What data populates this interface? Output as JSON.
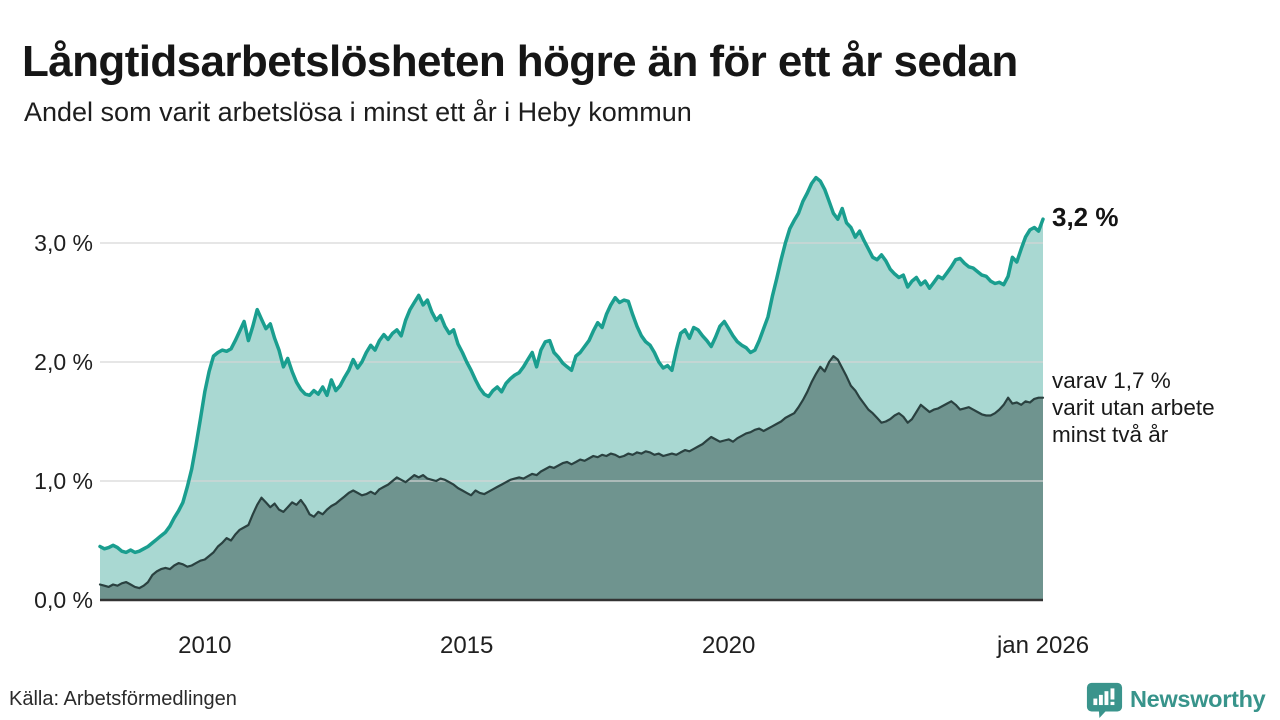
{
  "header": {
    "title": "Långtidsarbetslösheten högre än för ett år sedan",
    "subtitle": "Andel som varit arbetslösa i minst ett år i Heby kommun"
  },
  "chart_data": {
    "type": "area",
    "unit": "%",
    "frequency": "monthly",
    "x_range": [
      "2008",
      "jan 2026"
    ],
    "ylim": [
      0,
      3.7
    ],
    "grid": true,
    "yticks": [
      {
        "value": 0,
        "label": "0,0 %"
      },
      {
        "value": 1,
        "label": "1,0 %"
      },
      {
        "value": 2,
        "label": "2,0 %"
      },
      {
        "value": 3,
        "label": "3,0 %"
      }
    ],
    "xticks": [
      {
        "index": 24,
        "label": "2010"
      },
      {
        "index": 84,
        "label": "2015"
      },
      {
        "index": 144,
        "label": "2020"
      },
      {
        "index": 216,
        "label": "jan 2026"
      }
    ],
    "series": [
      {
        "name": "Andel som varit arbetslösa minst ett år",
        "line_color": "#1a9e8f",
        "fill_color": "#a9d8d2",
        "line_width": 3.5,
        "values": [
          0.45,
          0.43,
          0.44,
          0.46,
          0.44,
          0.41,
          0.4,
          0.42,
          0.4,
          0.41,
          0.43,
          0.45,
          0.48,
          0.51,
          0.54,
          0.57,
          0.62,
          0.69,
          0.75,
          0.82,
          0.95,
          1.1,
          1.3,
          1.52,
          1.75,
          1.92,
          2.05,
          2.08,
          2.1,
          2.09,
          2.11,
          2.18,
          2.26,
          2.34,
          2.18,
          2.3,
          2.44,
          2.36,
          2.28,
          2.32,
          2.2,
          2.1,
          1.96,
          2.03,
          1.92,
          1.83,
          1.77,
          1.73,
          1.72,
          1.76,
          1.73,
          1.79,
          1.72,
          1.85,
          1.76,
          1.8,
          1.87,
          1.93,
          2.02,
          1.95,
          2.0,
          2.08,
          2.14,
          2.1,
          2.18,
          2.23,
          2.19,
          2.24,
          2.27,
          2.22,
          2.35,
          2.44,
          2.5,
          2.56,
          2.48,
          2.52,
          2.42,
          2.35,
          2.39,
          2.3,
          2.24,
          2.27,
          2.15,
          2.08,
          2.0,
          1.93,
          1.85,
          1.78,
          1.73,
          1.71,
          1.76,
          1.79,
          1.75,
          1.82,
          1.86,
          1.89,
          1.91,
          1.96,
          2.02,
          2.08,
          1.96,
          2.1,
          2.17,
          2.18,
          2.08,
          2.04,
          1.99,
          1.96,
          1.93,
          2.05,
          2.08,
          2.13,
          2.18,
          2.26,
          2.33,
          2.29,
          2.4,
          2.48,
          2.54,
          2.5,
          2.52,
          2.51,
          2.4,
          2.3,
          2.22,
          2.17,
          2.14,
          2.08,
          2.0,
          1.95,
          1.97,
          1.93,
          2.1,
          2.24,
          2.27,
          2.2,
          2.29,
          2.27,
          2.22,
          2.18,
          2.13,
          2.21,
          2.3,
          2.34,
          2.28,
          2.22,
          2.17,
          2.14,
          2.12,
          2.08,
          2.1,
          2.18,
          2.28,
          2.38,
          2.55,
          2.7,
          2.86,
          3.0,
          3.12,
          3.19,
          3.25,
          3.35,
          3.42,
          3.5,
          3.55,
          3.52,
          3.45,
          3.35,
          3.25,
          3.2,
          3.29,
          3.17,
          3.13,
          3.05,
          3.1,
          3.02,
          2.95,
          2.88,
          2.86,
          2.9,
          2.85,
          2.78,
          2.74,
          2.71,
          2.73,
          2.63,
          2.68,
          2.71,
          2.65,
          2.68,
          2.62,
          2.67,
          2.72,
          2.7,
          2.75,
          2.8,
          2.86,
          2.87,
          2.83,
          2.8,
          2.79,
          2.76,
          2.73,
          2.72,
          2.68,
          2.66,
          2.67,
          2.65,
          2.72,
          2.88,
          2.84,
          2.95,
          3.05,
          3.11,
          3.13,
          3.1,
          3.2
        ]
      },
      {
        "name": "varav arbetslösa minst två år",
        "line_color": "#2a4140",
        "fill_color": "#6f948f",
        "line_width": 2.2,
        "values": [
          0.13,
          0.12,
          0.11,
          0.13,
          0.12,
          0.14,
          0.15,
          0.13,
          0.11,
          0.1,
          0.12,
          0.15,
          0.21,
          0.24,
          0.26,
          0.27,
          0.26,
          0.29,
          0.31,
          0.3,
          0.28,
          0.29,
          0.31,
          0.33,
          0.34,
          0.37,
          0.4,
          0.45,
          0.48,
          0.52,
          0.5,
          0.55,
          0.59,
          0.61,
          0.63,
          0.72,
          0.8,
          0.86,
          0.82,
          0.78,
          0.81,
          0.76,
          0.74,
          0.78,
          0.82,
          0.8,
          0.84,
          0.79,
          0.72,
          0.7,
          0.74,
          0.72,
          0.76,
          0.79,
          0.81,
          0.84,
          0.87,
          0.9,
          0.92,
          0.9,
          0.88,
          0.89,
          0.91,
          0.89,
          0.93,
          0.95,
          0.97,
          1.0,
          1.03,
          1.01,
          0.99,
          1.02,
          1.05,
          1.03,
          1.05,
          1.02,
          1.01,
          1.0,
          1.02,
          1.01,
          0.99,
          0.97,
          0.94,
          0.92,
          0.9,
          0.88,
          0.92,
          0.9,
          0.89,
          0.91,
          0.93,
          0.95,
          0.97,
          0.99,
          1.01,
          1.02,
          1.03,
          1.02,
          1.04,
          1.06,
          1.05,
          1.08,
          1.1,
          1.12,
          1.11,
          1.13,
          1.15,
          1.16,
          1.14,
          1.16,
          1.18,
          1.17,
          1.19,
          1.21,
          1.2,
          1.22,
          1.21,
          1.23,
          1.22,
          1.2,
          1.21,
          1.23,
          1.22,
          1.24,
          1.23,
          1.25,
          1.24,
          1.22,
          1.23,
          1.21,
          1.22,
          1.23,
          1.22,
          1.24,
          1.26,
          1.25,
          1.27,
          1.29,
          1.31,
          1.34,
          1.37,
          1.35,
          1.33,
          1.34,
          1.35,
          1.33,
          1.36,
          1.38,
          1.4,
          1.41,
          1.43,
          1.44,
          1.42,
          1.44,
          1.46,
          1.48,
          1.5,
          1.53,
          1.55,
          1.57,
          1.62,
          1.68,
          1.75,
          1.83,
          1.9,
          1.96,
          1.92,
          2.0,
          2.05,
          2.02,
          1.95,
          1.88,
          1.8,
          1.76,
          1.7,
          1.65,
          1.6,
          1.57,
          1.53,
          1.49,
          1.5,
          1.52,
          1.55,
          1.57,
          1.54,
          1.49,
          1.52,
          1.58,
          1.64,
          1.61,
          1.58,
          1.6,
          1.61,
          1.63,
          1.65,
          1.67,
          1.64,
          1.6,
          1.61,
          1.62,
          1.6,
          1.58,
          1.56,
          1.55,
          1.55,
          1.57,
          1.6,
          1.64,
          1.7,
          1.65,
          1.66,
          1.64,
          1.67,
          1.66,
          1.69,
          1.7,
          1.7
        ]
      }
    ],
    "annotations": {
      "end_label": "3,2 %",
      "end_value": 3.2,
      "series2_value": 1.7,
      "series2_lines": [
        "varav 1,7 %",
        "varit utan arbete",
        "minst två år"
      ]
    },
    "gridline_color": "#d6d6d6",
    "axis_line_color": "#333333"
  },
  "footer": {
    "source": "Källa: Arbetsförmedlingen",
    "brand": "Newsworthy",
    "brand_color": "#38948b"
  }
}
